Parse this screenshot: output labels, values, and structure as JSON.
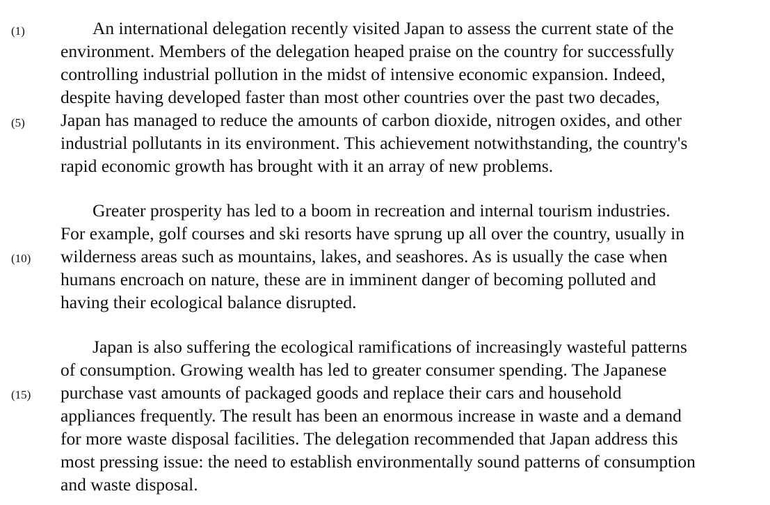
{
  "line_numbers": [
    "(1)",
    "(5)",
    "(10)",
    "(15)"
  ],
  "paragraphs": [
    {
      "lines": [
        "An international delegation recently visited Japan to assess the current state of the",
        "environment.  Members of the delegation heaped praise on the country for successfully",
        "controlling industrial pollution in the midst of intensive economic expansion.  Indeed,",
        "despite having developed faster than most other countries over the past two decades,",
        "Japan has managed to reduce the amounts of carbon dioxide, nitrogen oxides, and other",
        "industrial pollutants in its environment.  This achievement notwithstanding, the country's",
        "rapid economic growth has brought with it an array of new problems."
      ]
    },
    {
      "lines": [
        "Greater prosperity has led to a boom in recreation and internal tourism industries.",
        "For example, golf courses and ski resorts have sprung up all over the country, usually in",
        "wilderness areas such as mountains, lakes, and seashores.  As is usually the case when",
        "humans encroach on nature, these are in imminent danger of becoming polluted and",
        "having their ecological balance disrupted."
      ]
    },
    {
      "lines": [
        "Japan is also suffering the ecological ramifications of increasingly wasteful patterns",
        "of consumption.  Growing wealth has led to greater consumer spending.  The Japanese",
        "purchase vast amounts of packaged goods and replace their cars and household",
        "appliances frequently.  The result has been an enormous increase in waste and a demand",
        "for more waste disposal facilities.  The delegation recommended that Japan address this",
        "most pressing issue:  the need to establish environmentally sound patterns of consumption",
        "and waste disposal."
      ]
    }
  ]
}
